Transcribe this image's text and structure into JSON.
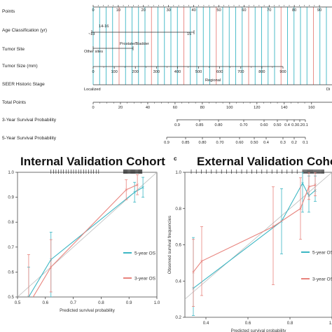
{
  "nomogram": {
    "rows": [
      {
        "label": "Points",
        "ticks": [
          "0",
          "10",
          "20",
          "30",
          "40",
          "50",
          "60",
          "70",
          "80",
          "90"
        ],
        "tick_values": [
          0,
          10,
          20,
          30,
          40,
          50,
          60,
          70,
          80,
          90
        ],
        "max": 95
      },
      {
        "label": "Age Classification (yr)",
        "annotations": [
          "14-16",
          "~13",
          "15"
        ]
      },
      {
        "label": "Tumor Site",
        "annotations": [
          "Prostate/Bladder",
          "Other sites"
        ]
      },
      {
        "label": "Tumor Size (mm)",
        "ticks": [
          "0",
          "100",
          "200",
          "300",
          "400",
          "500",
          "600",
          "700",
          "800",
          "900"
        ]
      },
      {
        "label": "SEER Historic Stage",
        "annotations": [
          "Regional",
          "Localized",
          "Di"
        ]
      },
      {
        "label": "Total Points",
        "ticks": [
          "0",
          "20",
          "40",
          "60",
          "80",
          "100",
          "120",
          "140",
          "160"
        ],
        "tick_values": [
          0,
          20,
          40,
          60,
          80,
          100,
          120,
          140,
          160
        ],
        "max": 175
      },
      {
        "label": "3-Year Survival Probability",
        "ticks": [
          "0.9",
          "0.85",
          "0.80",
          "0.70",
          "0.60",
          "0.50",
          "0.4",
          "0.3",
          "0.2",
          "0.1"
        ]
      },
      {
        "label": "5-Year Survival Probability",
        "ticks": [
          "0.9",
          "0.85",
          "0.80",
          "0.70",
          "0.60",
          "0.50",
          "0.4",
          "0.3",
          "0.2",
          "0.1"
        ]
      }
    ],
    "colors": {
      "teal": "#3cb7c4",
      "red": "#e8837d"
    }
  },
  "panel_letter_c": "c",
  "chart_data": [
    {
      "type": "scatter",
      "title": "Internal Validation Cohort",
      "xlabel": "Predicted survival probability",
      "ylabel": "",
      "xlim": [
        0.5,
        1.0
      ],
      "ylim": [
        0.5,
        1.0
      ],
      "x_ticks": [
        "0.5",
        "0.6",
        "0.7",
        "0.8",
        "0.9",
        "1.0"
      ],
      "y_ticks": [
        "0.5",
        "0.6",
        "0.7",
        "0.8",
        "0.9",
        "1.0"
      ],
      "legend_position": "bottom-right",
      "series": [
        {
          "name": "5-year OS",
          "color": "#3cb7c4",
          "x": [
            0.54,
            0.62,
            0.92,
            0.95
          ],
          "y": [
            0.5,
            0.65,
            0.92,
            0.94
          ],
          "err_low": [
            0.38,
            0.5,
            0.88,
            0.9
          ],
          "err_high": [
            0.62,
            0.76,
            0.96,
            0.98
          ]
        },
        {
          "name": "3-year OS",
          "color": "#e8837d",
          "x": [
            0.54,
            0.62,
            0.89,
            0.93
          ],
          "y": [
            0.47,
            0.62,
            0.93,
            0.95
          ],
          "err_low": [
            0.33,
            0.52,
            0.89,
            0.91
          ],
          "err_high": [
            0.67,
            0.73,
            0.97,
            0.99
          ]
        }
      ]
    },
    {
      "type": "scatter",
      "title": "External Validation Cohort",
      "xlabel": "Predicted survival probability",
      "ylabel": "Observed survival frequencies",
      "xlim": [
        0.3,
        1.0
      ],
      "ylim": [
        0.2,
        1.0
      ],
      "x_ticks": [
        "0.4",
        "0.6",
        "0.8",
        "1.0"
      ],
      "y_ticks": [
        "0.2",
        "0.4",
        "0.6",
        "0.8",
        "1.0"
      ],
      "legend_position": "bottom-right",
      "series": [
        {
          "name": "5-year OS",
          "color": "#3cb7c4",
          "x": [
            0.34,
            0.76,
            0.86,
            0.89,
            0.92
          ],
          "y": [
            0.36,
            0.73,
            0.94,
            0.87,
            0.9
          ],
          "err_low": [
            0.21,
            0.55,
            0.78,
            0.78,
            0.84
          ],
          "err_high": [
            0.64,
            0.91,
            1.0,
            0.98,
            0.98
          ]
        },
        {
          "name": "3-year OS",
          "color": "#e8837d",
          "x": [
            0.34,
            0.38,
            0.72,
            0.85,
            0.89,
            0.92
          ],
          "y": [
            0.45,
            0.51,
            0.7,
            0.8,
            0.92,
            0.93
          ],
          "err_low": [
            0.26,
            0.32,
            0.38,
            0.63,
            0.85,
            0.87
          ],
          "err_high": [
            0.63,
            0.7,
            0.92,
            0.97,
            1.0,
            1.0
          ]
        }
      ]
    }
  ],
  "legend": {
    "five_year": "5-year OS",
    "three_year": "3-year OS"
  }
}
